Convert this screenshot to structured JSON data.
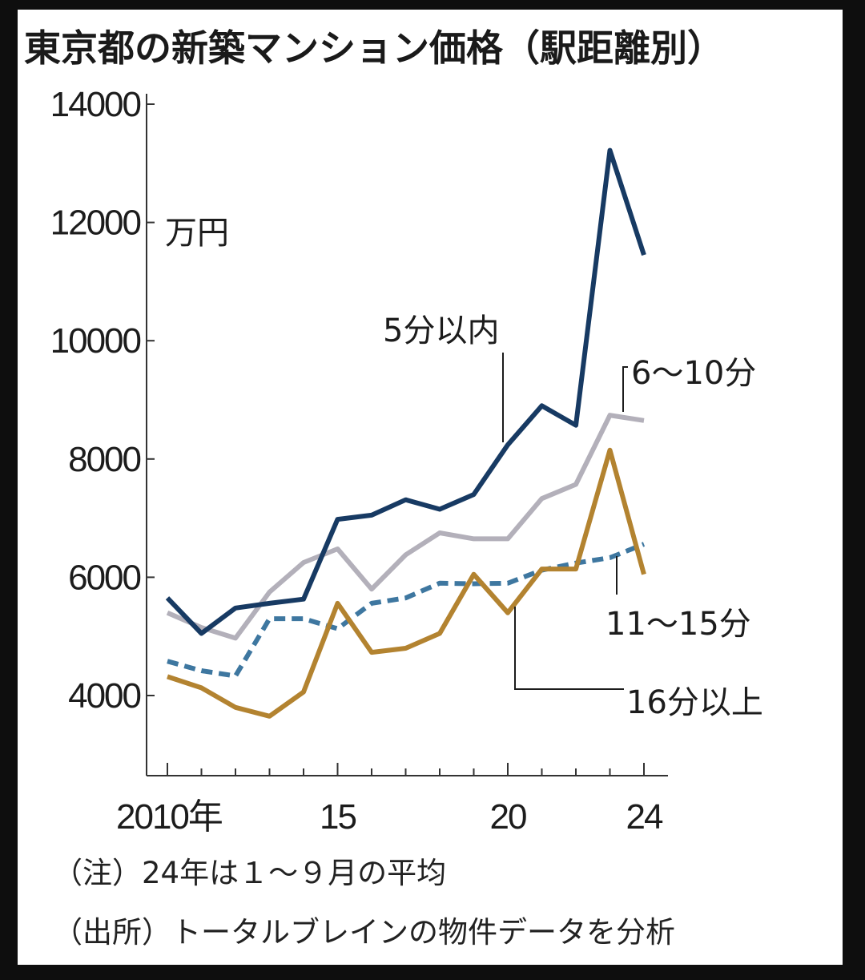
{
  "colors": {
    "background": "#ffffff",
    "frame": "#0e0e0e",
    "text": "#1c1c1c",
    "axis": "#333333"
  },
  "chart_data": {
    "type": "line",
    "title": "東京都の新築マンション価格（駅距離別）",
    "unit_label": "万円",
    "xlabel": "",
    "ylabel": "万円",
    "x": [
      2010,
      2011,
      2012,
      2013,
      2014,
      2015,
      2016,
      2017,
      2018,
      2019,
      2020,
      2021,
      2022,
      2023,
      2024
    ],
    "xlim": [
      2009.6,
      2024.6
    ],
    "ylim": [
      2800,
      14000
    ],
    "y_ticks": [
      4000,
      6000,
      8000,
      10000,
      12000,
      14000
    ],
    "y_tick_labels": [
      "4000",
      "6000",
      "8000",
      "10000",
      "12000",
      "14000"
    ],
    "x_ticks": [
      2010,
      2015,
      2020,
      2024
    ],
    "x_tick_labels": [
      "2010年",
      "15",
      "20",
      "24"
    ],
    "x_minor_ticks": [
      2011,
      2012,
      2013,
      2014,
      2016,
      2017,
      2018,
      2019,
      2021,
      2022,
      2023
    ],
    "grid": false,
    "series": [
      {
        "name": "5分以内",
        "color": "#173a63",
        "dash": "solid",
        "values": [
          5650,
          5050,
          5480,
          5560,
          5630,
          6980,
          7050,
          7310,
          7150,
          7400,
          8240,
          8900,
          8570,
          13220,
          11450
        ]
      },
      {
        "name": "6～10分",
        "color": "#b3b0ba",
        "dash": "solid",
        "values": [
          5400,
          5150,
          4970,
          5750,
          6250,
          6480,
          5800,
          6380,
          6750,
          6650,
          6650,
          7330,
          7570,
          8740,
          8650
        ]
      },
      {
        "name": "11～15分",
        "color": "#3e77a0",
        "dash": "dashed",
        "values": [
          4580,
          4420,
          4330,
          5300,
          5300,
          5130,
          5560,
          5650,
          5900,
          5890,
          5900,
          6120,
          6240,
          6330,
          6560
        ]
      },
      {
        "name": "16分以上",
        "color": "#b38330",
        "dash": "solid",
        "values": [
          4320,
          4130,
          3800,
          3650,
          4060,
          5560,
          4730,
          4800,
          5050,
          6050,
          5400,
          6140,
          6140,
          8150,
          6050
        ]
      }
    ],
    "annotations": [
      {
        "text": "5分以内",
        "series": "5分以内",
        "points_to_x": 2019.8,
        "points_to_y": 8100,
        "label_position": "above"
      },
      {
        "text": "6～10分",
        "series": "6～10分",
        "points_to_x": 2023.4,
        "points_to_y": 8700,
        "label_position": "upper-right"
      },
      {
        "text": "11～15分",
        "series": "11～15分",
        "points_to_x": 2023.2,
        "points_to_y": 6350,
        "label_position": "lower-right"
      },
      {
        "text": "16分以上",
        "series": "16分以上",
        "points_to_x": 2019.2,
        "points_to_y": 5500,
        "label_position": "lower-right"
      }
    ]
  },
  "notes": [
    "（注）24年は１～９月の平均",
    "（出所）トータルブレインの物件データを分析"
  ]
}
